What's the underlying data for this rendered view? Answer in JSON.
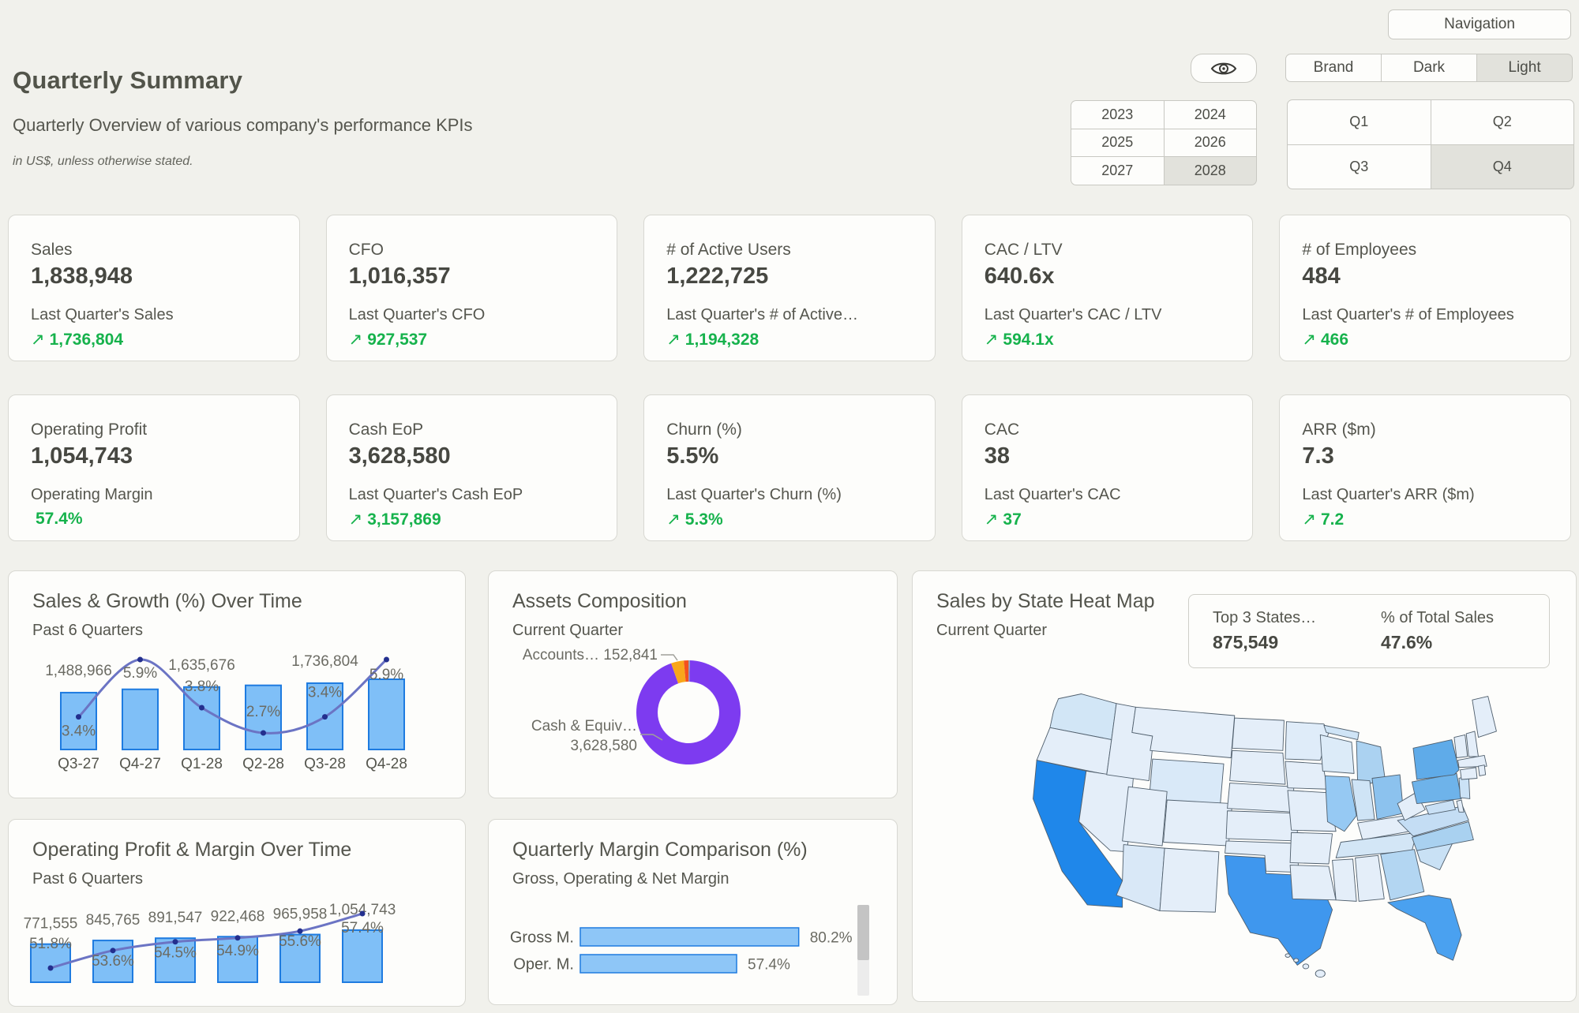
{
  "header": {
    "title": "Quarterly Summary",
    "subtitle": "Quarterly Overview of various company's performance KPIs",
    "note": "in US$, unless otherwise stated.",
    "navigation_label": "Navigation"
  },
  "icons": {
    "trend_up": "↗",
    "eye": "eye-icon"
  },
  "controls": {
    "theme": {
      "options": [
        "Brand",
        "Dark",
        "Light"
      ],
      "selected": "Light"
    },
    "years": {
      "options": [
        "2023",
        "2024",
        "2025",
        "2026",
        "2027",
        "2028"
      ],
      "selected": "2028"
    },
    "quarters": {
      "options": [
        "Q1",
        "Q2",
        "Q3",
        "Q4"
      ],
      "selected": "Q4"
    }
  },
  "colors": {
    "positive": "#16b24c",
    "bar_fill": "#7fbff7",
    "bar_stroke": "#1e7be0",
    "line": "#6b74c4",
    "marker": "#232f8e",
    "selected_bg": "#e2e2dc"
  },
  "kpi_cards": [
    {
      "title": "Sales",
      "value": "1,838,948",
      "sub": "Last Quarter's Sales",
      "change": "1,736,804",
      "arrow": true
    },
    {
      "title": "CFO",
      "value": "1,016,357",
      "sub": "Last Quarter's CFO",
      "change": "927,537",
      "arrow": true
    },
    {
      "title": "# of Active Users",
      "value": "1,222,725",
      "sub": "Last Quarter's # of Active…",
      "change": "1,194,328",
      "arrow": true
    },
    {
      "title": "CAC / LTV",
      "value": "640.6x",
      "sub": "Last Quarter's CAC / LTV",
      "change": "594.1x",
      "arrow": true
    },
    {
      "title": "# of Employees",
      "value": "484",
      "sub": "Last Quarter's # of Employees",
      "change": "466",
      "arrow": true
    },
    {
      "title": "Operating Profit",
      "value": "1,054,743",
      "sub": "Operating Margin",
      "change": "57.4%",
      "arrow": false
    },
    {
      "title": "Cash EoP",
      "value": "3,628,580",
      "sub": "Last Quarter's Cash EoP",
      "change": "3,157,869",
      "arrow": true
    },
    {
      "title": "Churn (%)",
      "value": "5.5%",
      "sub": "Last Quarter's Churn (%)",
      "change": "5.3%",
      "arrow": true
    },
    {
      "title": "CAC",
      "value": "38",
      "sub": "Last Quarter's CAC",
      "change": "37",
      "arrow": true
    },
    {
      "title": "ARR ($m)",
      "value": "7.3",
      "sub": "Last Quarter's ARR ($m)",
      "change": "7.2",
      "arrow": true
    }
  ],
  "chart_data": [
    {
      "id": "sales_growth",
      "type": "bar",
      "title": "Sales & Growth (%) Over Time",
      "subtitle": "Past 6 Quarters",
      "categories": [
        "Q3-27",
        "Q4-27",
        "Q1-28",
        "Q2-28",
        "Q3-28",
        "Q4-28"
      ],
      "series": [
        {
          "name": "Sales",
          "type": "bar",
          "values": [
            1488966,
            1576000,
            1635676,
            1680000,
            1736804,
            1838948
          ]
        },
        {
          "name": "Growth %",
          "type": "line",
          "values": [
            3.4,
            5.9,
            3.8,
            2.7,
            3.4,
            5.9
          ]
        }
      ],
      "bar_value_labels": {
        "0": "1,488,966",
        "2": "1,635,676",
        "4": "1,736,804"
      },
      "pct_labels": [
        "3.4%",
        "5.9%",
        "3.8%",
        "2.7%",
        "3.4%",
        "5.9%"
      ],
      "legend_position": "none",
      "grid": false
    },
    {
      "id": "assets_composition",
      "type": "pie",
      "title": "Assets Composition",
      "subtitle": "Current Quarter",
      "slices": [
        {
          "label": "Cash & Equiv…",
          "value": 3628580,
          "display": "3,628,580",
          "color": "#7d3bf0"
        },
        {
          "label": "Accounts…",
          "value": 152841,
          "display": "152,841",
          "color": "#f9a61a"
        },
        {
          "label": "",
          "value": 55000,
          "display": "",
          "color": "#f4511e"
        },
        {
          "label": "",
          "value": 18000,
          "display": "",
          "color": "#8f9fb3"
        }
      ]
    },
    {
      "id": "operating_profit_margin",
      "type": "bar",
      "title": "Operating Profit & Margin Over Time",
      "subtitle": "Past 6 Quarters",
      "series": [
        {
          "name": "Operating Profit",
          "type": "bar",
          "values": [
            771555,
            845765,
            891547,
            922468,
            965958,
            1054743
          ]
        },
        {
          "name": "Operating Margin %",
          "type": "line",
          "values": [
            51.8,
            53.6,
            54.5,
            54.9,
            55.6,
            57.4
          ]
        }
      ],
      "bar_value_labels": [
        "771,555",
        "845,765",
        "891,547",
        "922,468",
        "965,958",
        "1,054,743"
      ],
      "pct_labels": [
        "51.8%",
        "53.6%",
        "54.5%",
        "54.9%",
        "55.6%",
        "57.4%"
      ],
      "legend_position": "none",
      "grid": false
    },
    {
      "id": "margin_comparison",
      "type": "bar",
      "orientation": "horizontal",
      "title": "Quarterly Margin Comparison (%)",
      "subtitle": "Gross, Operating & Net Margin",
      "categories": [
        "Gross M.",
        "Oper. M."
      ],
      "values": [
        80.2,
        57.4
      ],
      "value_labels": [
        "80.2%",
        "57.4%"
      ],
      "xlim": [
        0,
        100
      ],
      "scrollbar": true
    },
    {
      "id": "sales_by_state",
      "type": "heatmap",
      "title": "Sales by State Heat Map",
      "subtitle": "Current Quarter",
      "info_box": {
        "label1": "Top 3 States…",
        "value1": "875,549",
        "label2": "% of Total Sales",
        "value2": "47.6%"
      },
      "state_colors": {
        "CA": "#1f87ea",
        "TX": "#3f97ee",
        "FL": "#4aa1f0",
        "NY": "#5fabe9",
        "PA": "#6eb3ea",
        "OH": "#8cc2ee",
        "IL": "#96c9f3",
        "MI": "#abd2f1",
        "NC": "#a9d1f0",
        "GA": "#b3d6f2",
        "VA": "#c4ddf4",
        "SC": "#c9e1f5",
        "NJ": "#cbe2f6",
        "MD": "#c9e0f5",
        "IN": "#cfe4f6",
        "TN": "#d3e6f6",
        "WA": "#d2e6f6",
        "WY": "#d9e9f8",
        "AZ": "#d9e8f7",
        "WI": "#dcebf8",
        "MN": "#dfecf9",
        "MIUP": "#cfe4f6",
        "default": "#e4eef9"
      }
    }
  ]
}
